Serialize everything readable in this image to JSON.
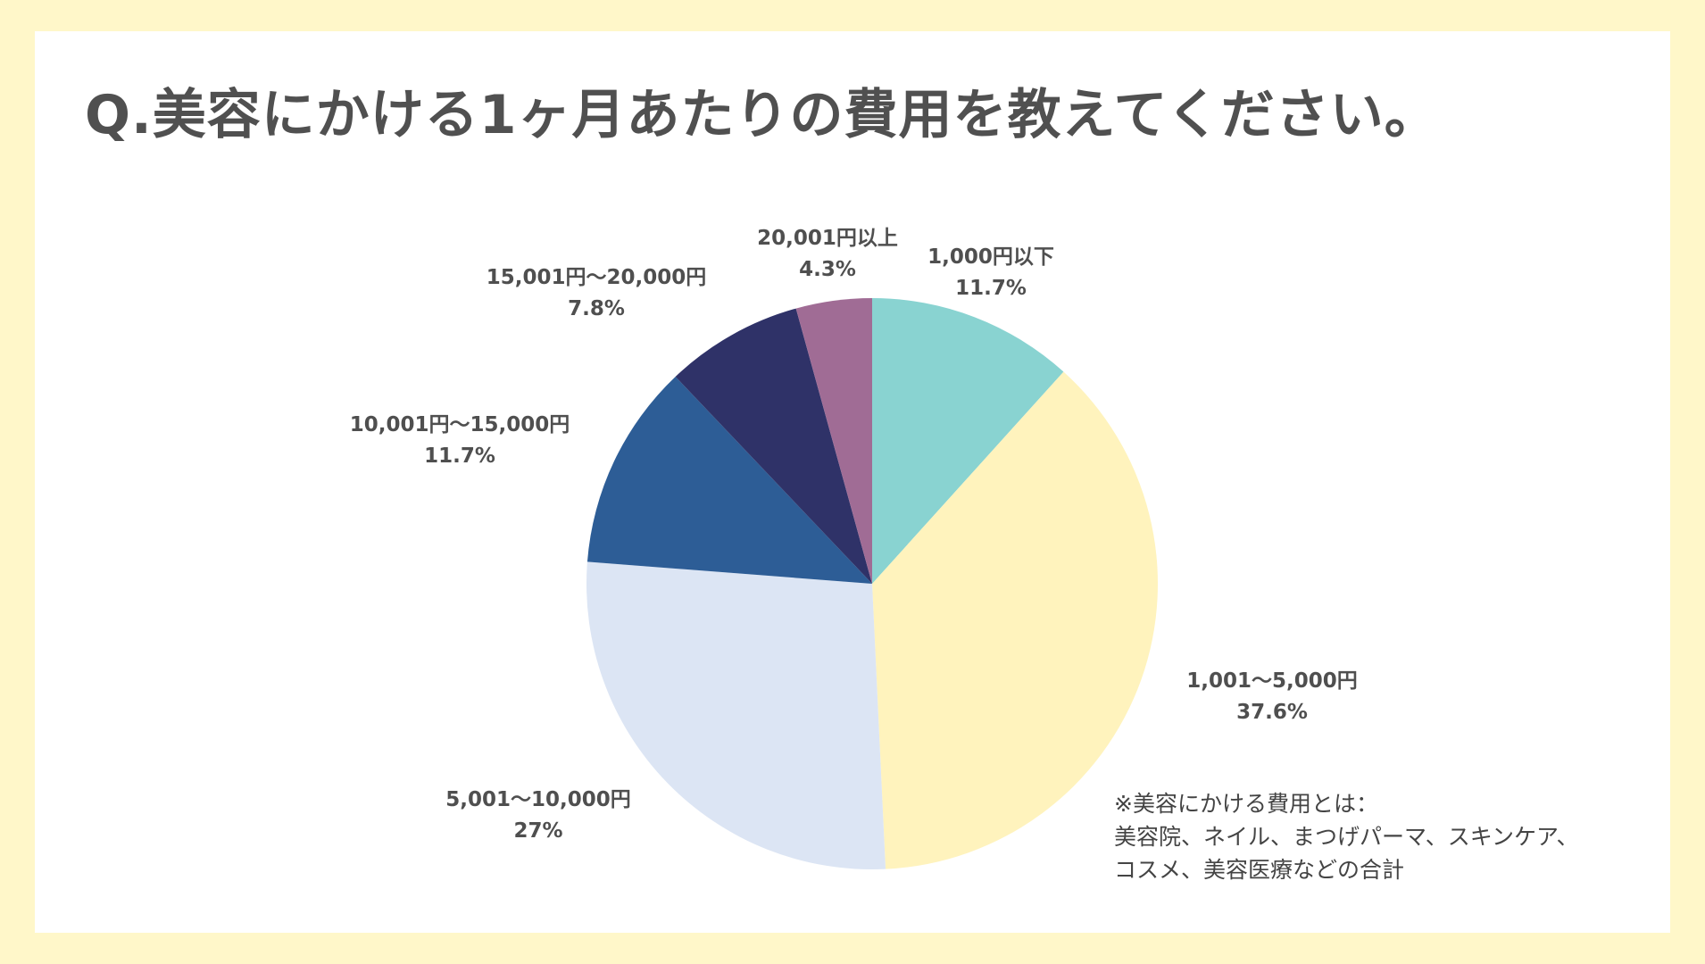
{
  "chart_data": {
    "type": "pie",
    "title": "Q.美容にかける1ヶ月あたりの費用を教えてください。",
    "categories": [
      "1,000円以下",
      "1,001〜5,000円",
      "5,001〜10,000円",
      "10,001円〜15,000円",
      "15,001円〜20,000円",
      "20,001円以上"
    ],
    "values": [
      11.7,
      37.6,
      27,
      11.7,
      7.8,
      4.3
    ],
    "value_labels": [
      "11.7%",
      "37.6%",
      "27%",
      "11.7%",
      "7.8%",
      "4.3%"
    ],
    "colors": [
      "#89d3d1",
      "#fff3bd",
      "#dce5f4",
      "#2d5d96",
      "#2f3268",
      "#a06c95"
    ],
    "start_angle": "12 o'clock",
    "direction": "clockwise"
  },
  "note": {
    "lines": [
      "※美容にかける費用とは：",
      "美容院、ネイル、まつげパーマ、スキンケア、",
      "コスメ、美容医療などの合計"
    ]
  },
  "theme": {
    "background": "#fff7c9",
    "card": "#ffffff",
    "text": "#4f4f4f"
  }
}
